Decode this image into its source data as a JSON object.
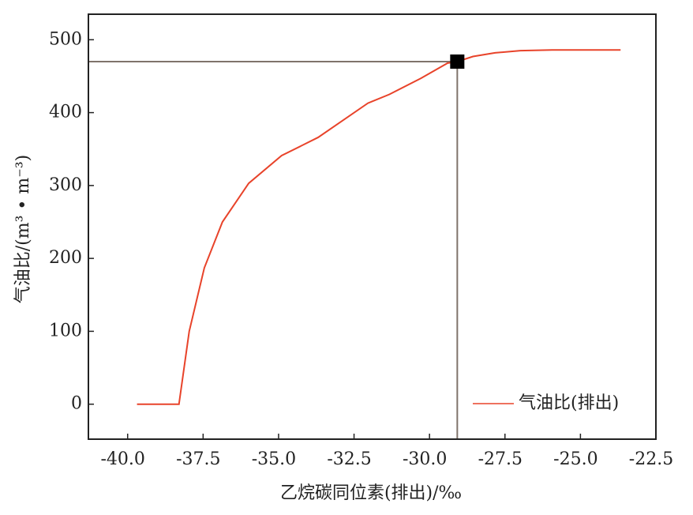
{
  "chart_data": {
    "type": "line",
    "xlabel": "乙烷碳同位素(排出)/‰",
    "ylabel": "气油比/(m³ • m⁻³)",
    "x": [
      -39.69,
      -38.3,
      -37.96,
      -37.46,
      -36.86,
      -35.99,
      -34.9,
      -33.69,
      -32.04,
      -31.33,
      -30.29,
      -29.4,
      -29.08,
      -28.56,
      -27.83,
      -26.99,
      -25.94,
      -23.67
    ],
    "series": [
      {
        "name": "气油比(排出)",
        "color": "#e8432a",
        "values": [
          0,
          0,
          100,
          187,
          250,
          303,
          341,
          366,
          413,
          425,
          447,
          468,
          470,
          477,
          482,
          485,
          486,
          486
        ]
      }
    ],
    "marker": {
      "x": -29.08,
      "y": 470,
      "color": "#000000",
      "line_color": "#7f736b"
    },
    "xlim": [
      -41.3,
      -22.5
    ],
    "ylim": [
      -48,
      535
    ],
    "xticks": [
      {
        "value": -40,
        "label": "-40.0"
      },
      {
        "value": -37.5,
        "label": "-37.5"
      },
      {
        "value": -35,
        "label": "-35.0"
      },
      {
        "value": -32.5,
        "label": "-32.5"
      },
      {
        "value": -30,
        "label": "-30.0"
      },
      {
        "value": -27.5,
        "label": "-27.5"
      },
      {
        "value": -25,
        "label": "-25.0"
      },
      {
        "value": -22.5,
        "label": "-22.5"
      }
    ],
    "yticks": [
      0,
      100,
      200,
      300,
      400,
      500
    ],
    "legend": "lower right"
  }
}
